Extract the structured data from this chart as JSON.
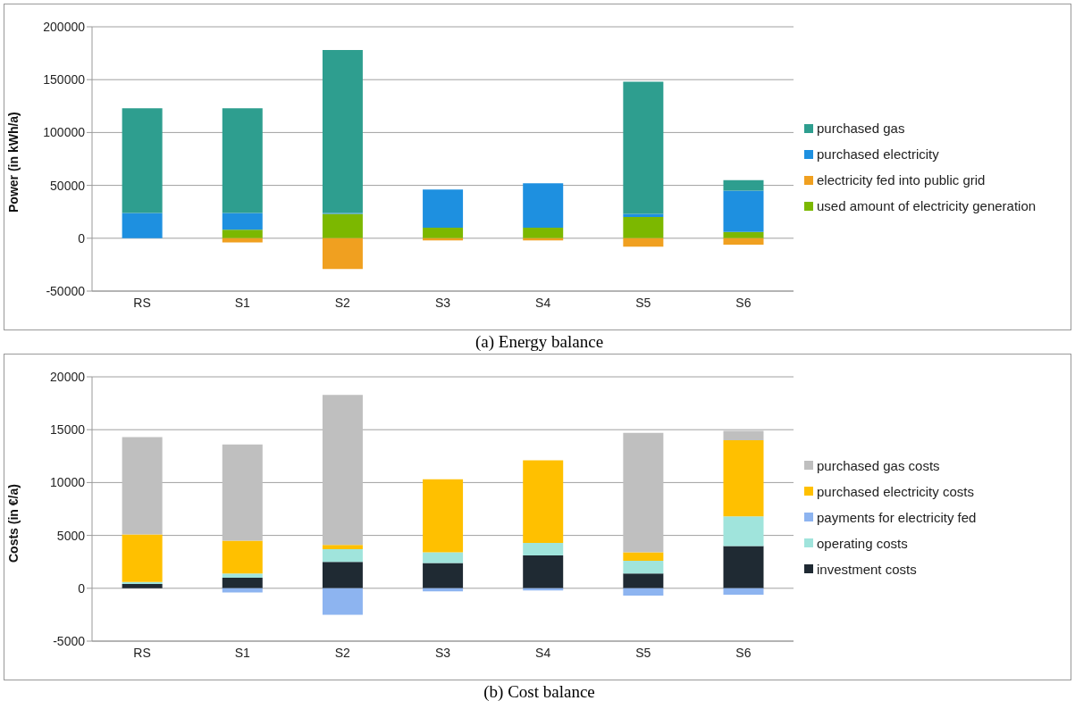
{
  "chart_data": [
    {
      "type": "bar",
      "stacked": true,
      "ylabel": "Power (in kWh/a)",
      "annotations": [
        "(a) Energy balance"
      ],
      "categories": [
        "RS",
        "S1",
        "S2",
        "S3",
        "S4",
        "S5",
        "S6"
      ],
      "ylim": [
        -50000,
        200000
      ],
      "yticks": [
        -50000,
        0,
        50000,
        100000,
        150000,
        200000
      ],
      "grid": "y",
      "legend": "right",
      "series": [
        {
          "name": "used amount of electricity generation",
          "color": "#7cb800",
          "values": [
            0,
            8000,
            23000,
            10000,
            10000,
            20000,
            6000
          ]
        },
        {
          "name": "electricity fed into public grid",
          "color": "#f0a020",
          "values": [
            0,
            -4000,
            -29000,
            -2000,
            -2000,
            -8000,
            -6000
          ]
        },
        {
          "name": "purchased electricity",
          "color": "#1e90e0",
          "values": [
            24000,
            16000,
            1000,
            36000,
            42000,
            3000,
            39000
          ]
        },
        {
          "name": "purchased gas",
          "color": "#2e9e8f",
          "values": [
            99000,
            99000,
            154000,
            0,
            0,
            125000,
            10000
          ]
        }
      ]
    },
    {
      "type": "bar",
      "stacked": true,
      "ylabel": "Costs (in €/a)",
      "annotations": [
        "(b) Cost balance"
      ],
      "categories": [
        "RS",
        "S1",
        "S2",
        "S3",
        "S4",
        "S5",
        "S6"
      ],
      "ylim": [
        -5000,
        20000
      ],
      "yticks": [
        -5000,
        0,
        5000,
        10000,
        15000,
        20000
      ],
      "grid": "y",
      "legend": "right",
      "series": [
        {
          "name": "investment costs",
          "color": "#1f2a33",
          "values": [
            400,
            1000,
            2500,
            2400,
            3100,
            1400,
            4000
          ]
        },
        {
          "name": "operating costs",
          "color": "#a0e4dc",
          "values": [
            200,
            400,
            1200,
            1000,
            1200,
            1200,
            2800
          ]
        },
        {
          "name": "payments for electricity fed",
          "color": "#8db4f0",
          "values": [
            0,
            -400,
            -2500,
            -300,
            -200,
            -700,
            -600
          ]
        },
        {
          "name": "purchased electricity costs",
          "color": "#ffc000",
          "values": [
            4500,
            3100,
            400,
            6900,
            7800,
            800,
            7200
          ]
        },
        {
          "name": "purchased gas costs",
          "color": "#bfbfbf",
          "values": [
            9200,
            9100,
            14200,
            0,
            0,
            11300,
            900
          ]
        }
      ]
    }
  ]
}
